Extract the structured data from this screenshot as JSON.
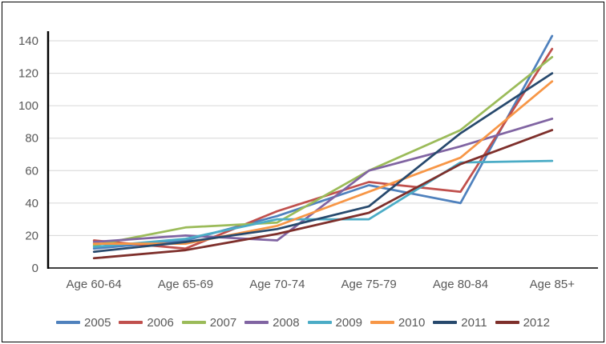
{
  "chart_data": {
    "type": "line",
    "title": "",
    "xlabel": "",
    "ylabel": "",
    "categories": [
      "Age 60-64",
      "Age 65-69",
      "Age 70-74",
      "Age 75-79",
      "Age 80-84",
      "Age 85+"
    ],
    "series": [
      {
        "name": "2005",
        "color": "#4F81BD",
        "values": [
          12,
          17,
          32,
          51,
          40,
          143
        ]
      },
      {
        "name": "2006",
        "color": "#C0504D",
        "values": [
          17,
          12,
          35,
          53,
          47,
          135
        ]
      },
      {
        "name": "2007",
        "color": "#9BBB59",
        "values": [
          14,
          25,
          28,
          60,
          85,
          130
        ]
      },
      {
        "name": "2008",
        "color": "#8064A2",
        "values": [
          16,
          20,
          17,
          60,
          75,
          92
        ]
      },
      {
        "name": "2009",
        "color": "#4BACC6",
        "values": [
          13,
          18,
          30,
          30,
          65,
          66
        ]
      },
      {
        "name": "2010",
        "color": "#F79646",
        "values": [
          15,
          15,
          26,
          47,
          68,
          115
        ]
      },
      {
        "name": "2011",
        "color": "#27496D",
        "values": [
          10,
          16,
          24,
          38,
          83,
          120
        ]
      },
      {
        "name": "2012",
        "color": "#7E2F2B",
        "values": [
          6,
          11,
          21,
          34,
          64,
          85
        ]
      }
    ],
    "ylim": [
      0,
      140
    ],
    "ytick_step": 20,
    "ytick_labels": [
      "0",
      "20",
      "40",
      "60",
      "80",
      "100",
      "120",
      "140"
    ],
    "grid": true,
    "gridline_color": "#D6D6D6",
    "axis_color": "#000000",
    "legend_position": "bottom"
  }
}
